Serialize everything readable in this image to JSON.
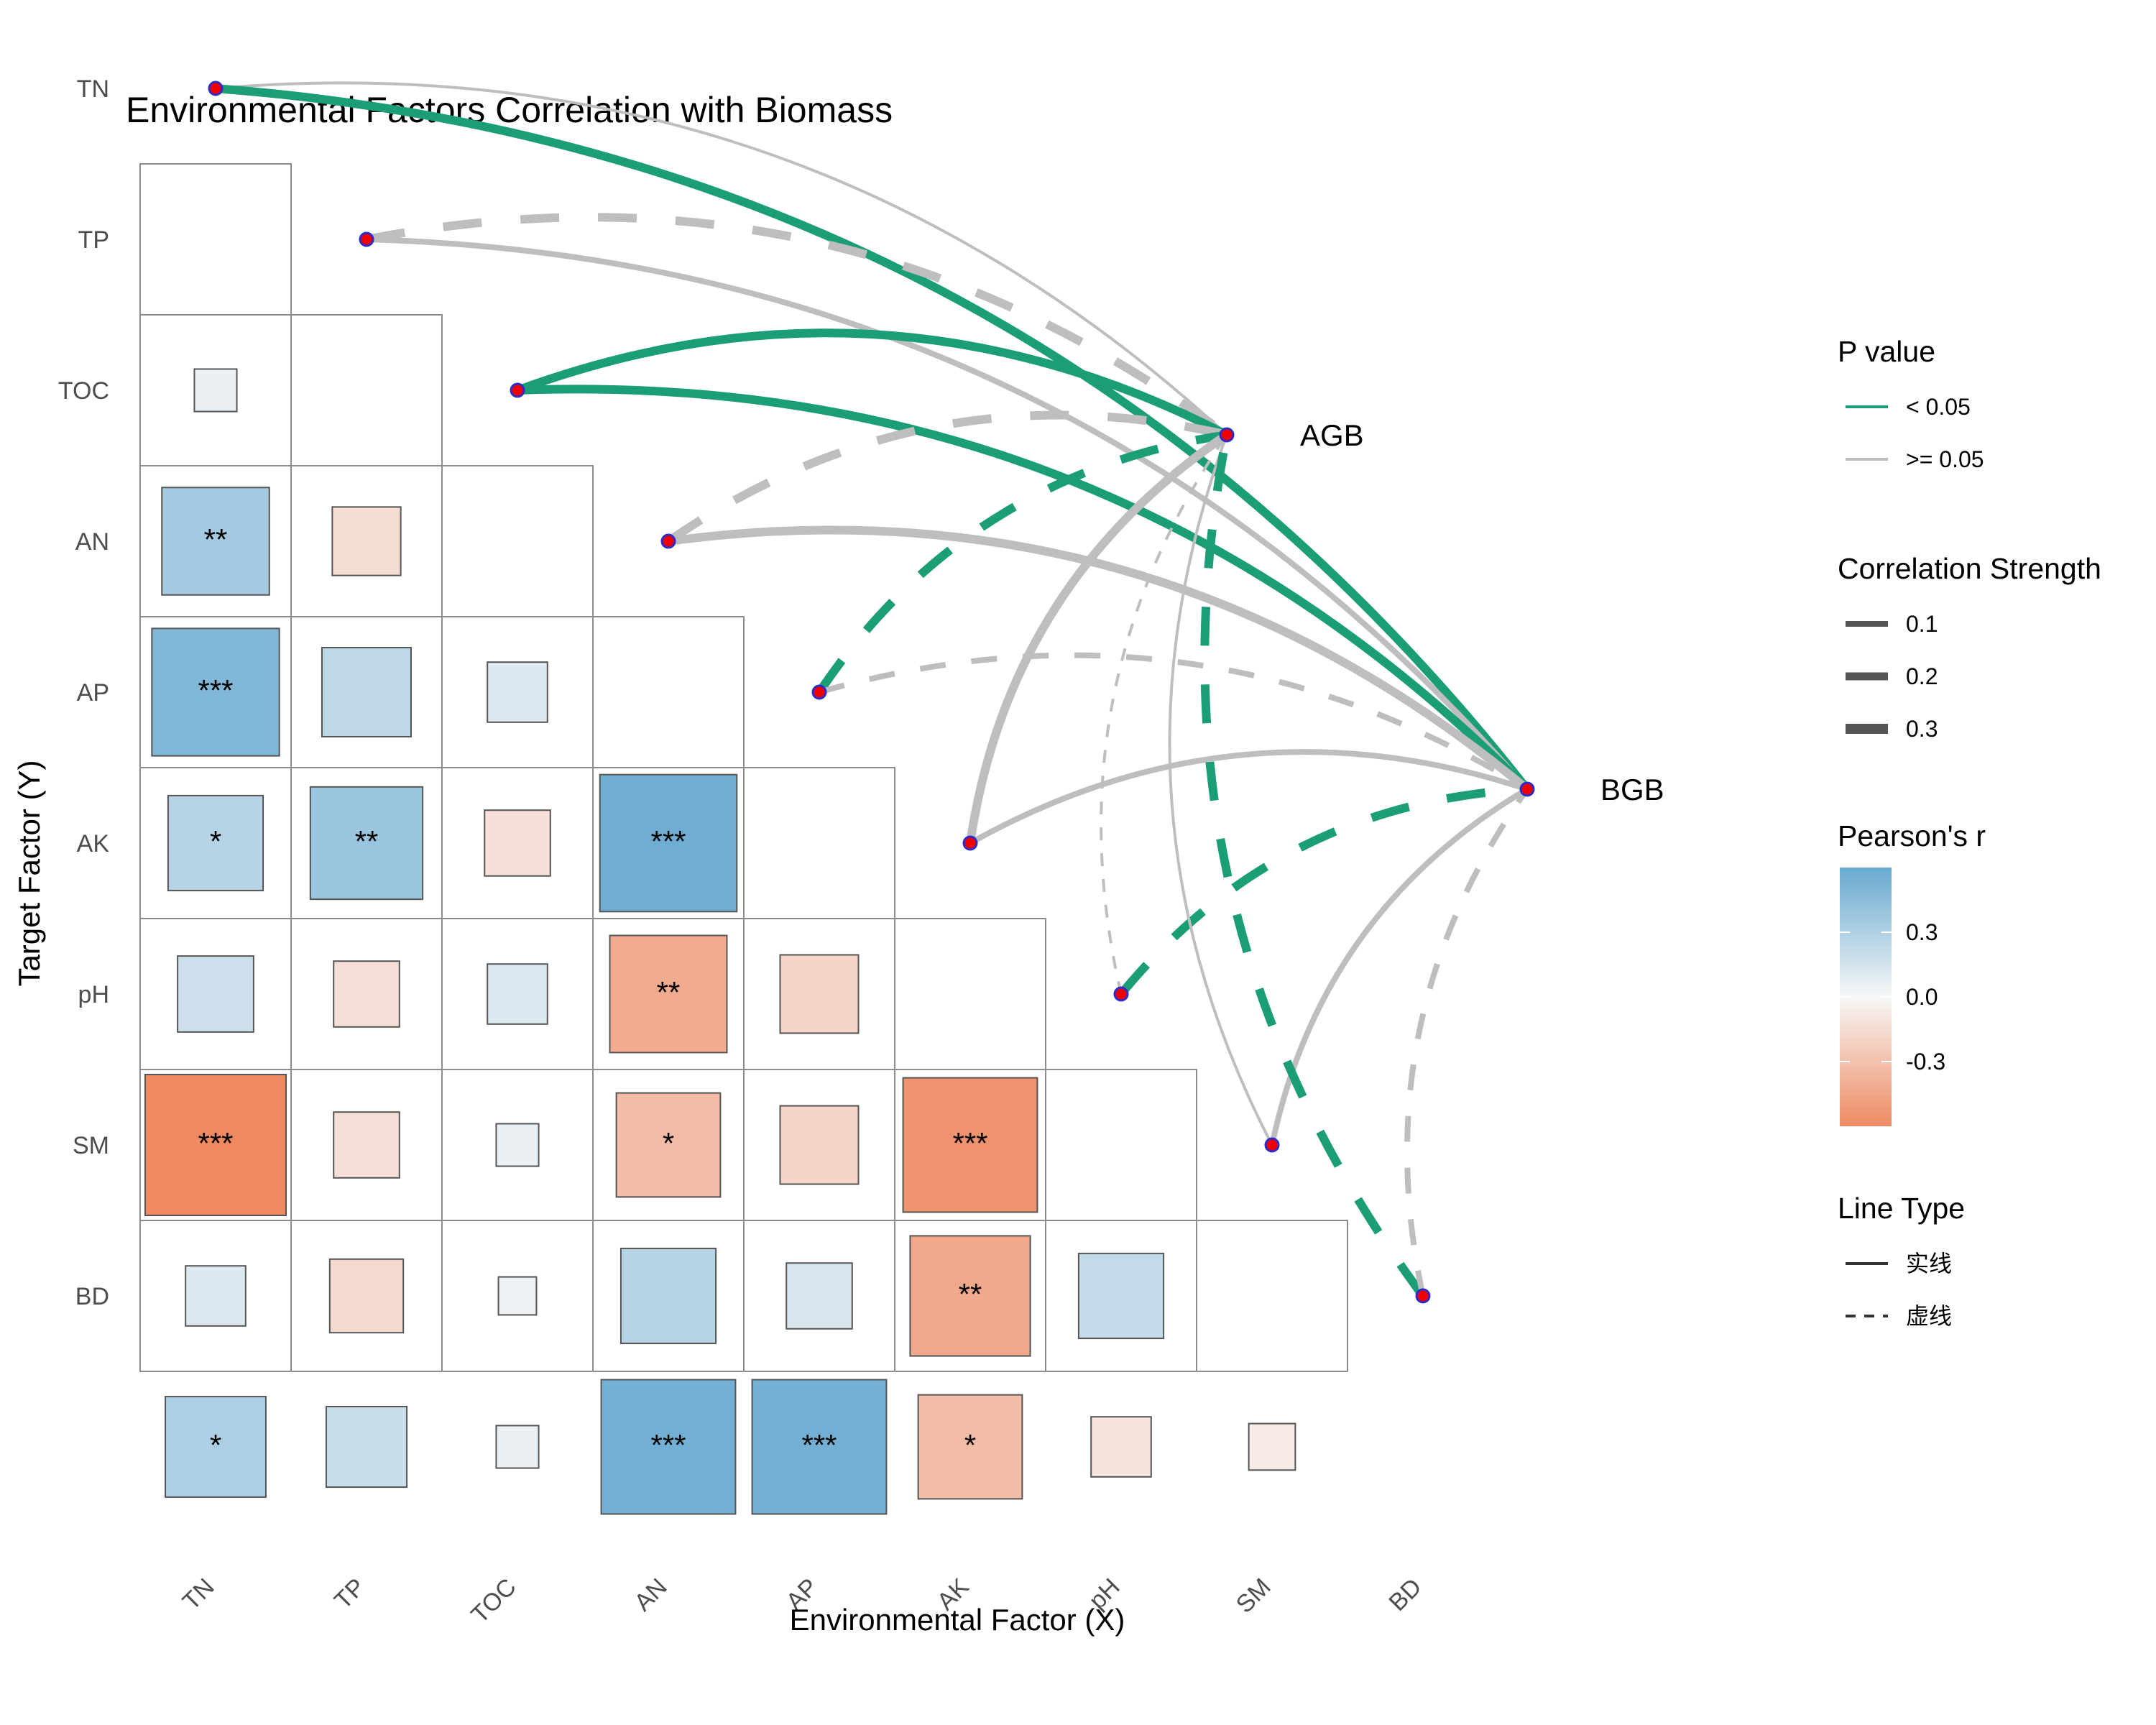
{
  "chart_data": {
    "type": "heatmap",
    "title": "Environmental Factors Correlation with Biomass",
    "xlabel": "Environmental Factor (X)",
    "ylabel": "Target Factor (Y)",
    "factors": [
      "TN",
      "TP",
      "TOC",
      "AN",
      "AP",
      "AK",
      "pH",
      "SM",
      "BD"
    ],
    "matrix_cells": [
      {
        "row": "TP",
        "col": "TN",
        "r": 0.05,
        "sig": ""
      },
      {
        "row": "TOC",
        "col": "TN",
        "r": 0.32,
        "sig": "**"
      },
      {
        "row": "TOC",
        "col": "TP",
        "r": -0.13,
        "sig": ""
      },
      {
        "row": "AN",
        "col": "TN",
        "r": 0.45,
        "sig": "***"
      },
      {
        "row": "AN",
        "col": "TP",
        "r": 0.22,
        "sig": ""
      },
      {
        "row": "AN",
        "col": "TOC",
        "r": 0.1,
        "sig": ""
      },
      {
        "row": "AP",
        "col": "TN",
        "r": 0.25,
        "sig": "*"
      },
      {
        "row": "AP",
        "col": "TP",
        "r": 0.35,
        "sig": "**"
      },
      {
        "row": "AP",
        "col": "TOC",
        "r": -0.12,
        "sig": ""
      },
      {
        "row": "AP",
        "col": "AN",
        "r": 0.52,
        "sig": "***"
      },
      {
        "row": "AK",
        "col": "TN",
        "r": 0.16,
        "sig": ""
      },
      {
        "row": "AK",
        "col": "TP",
        "r": -0.12,
        "sig": ""
      },
      {
        "row": "AK",
        "col": "TOC",
        "r": 0.1,
        "sig": ""
      },
      {
        "row": "AK",
        "col": "AN",
        "r": -0.38,
        "sig": "**"
      },
      {
        "row": "AK",
        "col": "AP",
        "r": -0.17,
        "sig": ""
      },
      {
        "row": "pH",
        "col": "TN",
        "r": -0.55,
        "sig": "***"
      },
      {
        "row": "pH",
        "col": "TP",
        "r": -0.12,
        "sig": ""
      },
      {
        "row": "pH",
        "col": "TOC",
        "r": 0.05,
        "sig": ""
      },
      {
        "row": "pH",
        "col": "AN",
        "r": -0.3,
        "sig": "*"
      },
      {
        "row": "pH",
        "col": "AP",
        "r": -0.17,
        "sig": ""
      },
      {
        "row": "pH",
        "col": "AK",
        "r": -0.5,
        "sig": "***"
      },
      {
        "row": "SM",
        "col": "TN",
        "r": 0.1,
        "sig": ""
      },
      {
        "row": "SM",
        "col": "TP",
        "r": -0.15,
        "sig": ""
      },
      {
        "row": "SM",
        "col": "TOC",
        "r": 0.04,
        "sig": ""
      },
      {
        "row": "SM",
        "col": "AN",
        "r": 0.25,
        "sig": ""
      },
      {
        "row": "SM",
        "col": "AP",
        "r": 0.12,
        "sig": ""
      },
      {
        "row": "SM",
        "col": "AK",
        "r": -0.4,
        "sig": "**"
      },
      {
        "row": "SM",
        "col": "pH",
        "r": 0.2,
        "sig": ""
      },
      {
        "row": "BD",
        "col": "TN",
        "r": 0.28,
        "sig": "*"
      },
      {
        "row": "BD",
        "col": "TP",
        "r": 0.18,
        "sig": ""
      },
      {
        "row": "BD",
        "col": "TOC",
        "r": 0.05,
        "sig": ""
      },
      {
        "row": "BD",
        "col": "AN",
        "r": 0.5,
        "sig": "***"
      },
      {
        "row": "BD",
        "col": "AP",
        "r": 0.5,
        "sig": "***"
      },
      {
        "row": "BD",
        "col": "AK",
        "r": -0.3,
        "sig": "*"
      },
      {
        "row": "BD",
        "col": "pH",
        "r": -0.1,
        "sig": ""
      },
      {
        "row": "BD",
        "col": "SM",
        "r": -0.06,
        "sig": ""
      }
    ],
    "targets": [
      "AGB",
      "BGB"
    ],
    "links": [
      {
        "from": "TN",
        "to": "AGB",
        "significant": false,
        "strength": 0.1,
        "line": "solid"
      },
      {
        "from": "TN",
        "to": "BGB",
        "significant": true,
        "strength": 0.3,
        "line": "solid"
      },
      {
        "from": "TP",
        "to": "AGB",
        "significant": false,
        "strength": 0.3,
        "line": "dashed"
      },
      {
        "from": "TP",
        "to": "BGB",
        "significant": false,
        "strength": 0.2,
        "line": "solid"
      },
      {
        "from": "TOC",
        "to": "AGB",
        "significant": true,
        "strength": 0.3,
        "line": "solid"
      },
      {
        "from": "TOC",
        "to": "BGB",
        "significant": true,
        "strength": 0.3,
        "line": "solid"
      },
      {
        "from": "AN",
        "to": "AGB",
        "significant": false,
        "strength": 0.3,
        "line": "dashed"
      },
      {
        "from": "AN",
        "to": "BGB",
        "significant": false,
        "strength": 0.3,
        "line": "solid"
      },
      {
        "from": "AP",
        "to": "AGB",
        "significant": true,
        "strength": 0.3,
        "line": "dashed"
      },
      {
        "from": "AP",
        "to": "BGB",
        "significant": false,
        "strength": 0.2,
        "line": "dashed"
      },
      {
        "from": "AK",
        "to": "AGB",
        "significant": false,
        "strength": 0.3,
        "line": "solid"
      },
      {
        "from": "AK",
        "to": "BGB",
        "significant": false,
        "strength": 0.2,
        "line": "solid"
      },
      {
        "from": "pH",
        "to": "AGB",
        "significant": false,
        "strength": 0.1,
        "line": "dashed"
      },
      {
        "from": "pH",
        "to": "BGB",
        "significant": true,
        "strength": 0.3,
        "line": "dashed"
      },
      {
        "from": "SM",
        "to": "AGB",
        "significant": false,
        "strength": 0.1,
        "line": "solid"
      },
      {
        "from": "SM",
        "to": "BGB",
        "significant": false,
        "strength": 0.2,
        "line": "solid"
      },
      {
        "from": "BD",
        "to": "AGB",
        "significant": true,
        "strength": 0.3,
        "line": "dashed"
      },
      {
        "from": "BD",
        "to": "BGB",
        "significant": false,
        "strength": 0.2,
        "line": "dashed"
      }
    ],
    "legend": {
      "p_value": {
        "title": "P value",
        "items": [
          "< 0.05",
          ">= 0.05"
        ],
        "colors": [
          "#1b9e77",
          "#bebebe"
        ]
      },
      "strength": {
        "title": "Correlation Strength",
        "items": [
          "0.1",
          "0.2",
          "0.3"
        ]
      },
      "pearson": {
        "title": "Pearson's r",
        "ticks": [
          "0.3",
          "0.0",
          "-0.3"
        ],
        "tick_values": [
          0.3,
          0.0,
          -0.3
        ],
        "range": [
          -0.6,
          0.6
        ]
      },
      "line_type": {
        "title": "Line Type",
        "items": [
          "实线",
          "虚线"
        ]
      }
    },
    "colors": {
      "positive": "#67a9cf",
      "negative": "#ef8a62",
      "neutral": "#f7f7f7",
      "significant": "#1b9e77",
      "nonsignificant": "#bebebe",
      "node_fill": "#ee0000",
      "node_stroke": "#2c2cc8"
    }
  }
}
